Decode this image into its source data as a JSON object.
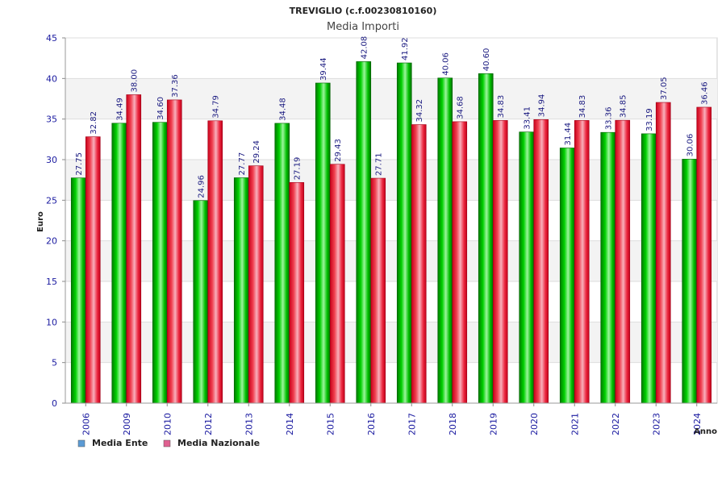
{
  "chart_data": {
    "type": "bar",
    "title": "TREVIGLIO (c.f.00230810160)",
    "subtitle": "Media Importi",
    "xlabel": "Anno",
    "ylabel": "Euro",
    "ylim": [
      0,
      45
    ],
    "yticks": [
      0,
      5,
      10,
      15,
      20,
      25,
      30,
      35,
      40,
      45
    ],
    "grid": true,
    "legend_position": "bottom-left",
    "categories": [
      "2006",
      "2009",
      "2010",
      "2012",
      "2013",
      "2014",
      "2015",
      "2016",
      "2017",
      "2018",
      "2019",
      "2020",
      "2021",
      "2022",
      "2023",
      "2024"
    ],
    "series": [
      {
        "name": "Media Ente",
        "color": "#00b800",
        "legend_color": "#5b9bd5",
        "values": [
          27.75,
          34.49,
          34.6,
          24.96,
          27.77,
          34.48,
          39.44,
          42.08,
          41.92,
          40.06,
          40.6,
          33.41,
          31.44,
          33.36,
          33.19,
          30.06
        ],
        "labels": [
          "27.75",
          "34.49",
          "34.60",
          "24.96",
          "27.77",
          "34.48",
          "39.44",
          "42.08",
          "41.92",
          "40.06",
          "40.60",
          "33.41",
          "31.44",
          "33.36",
          "33.19",
          "30.06"
        ]
      },
      {
        "name": "Media Nazionale",
        "color": "#e8102a",
        "legend_color": "#e06090",
        "values": [
          32.82,
          38.0,
          37.36,
          34.79,
          29.24,
          27.19,
          29.43,
          27.71,
          34.32,
          34.68,
          34.83,
          34.94,
          34.83,
          34.85,
          37.05,
          36.46
        ],
        "labels": [
          "32.82",
          "38.00",
          "37.36",
          "34.79",
          "29.24",
          "27.19",
          "29.43",
          "27.71",
          "34.32",
          "34.68",
          "34.83",
          "34.94",
          "34.83",
          "34.85",
          "37.05",
          "36.46"
        ]
      }
    ]
  }
}
